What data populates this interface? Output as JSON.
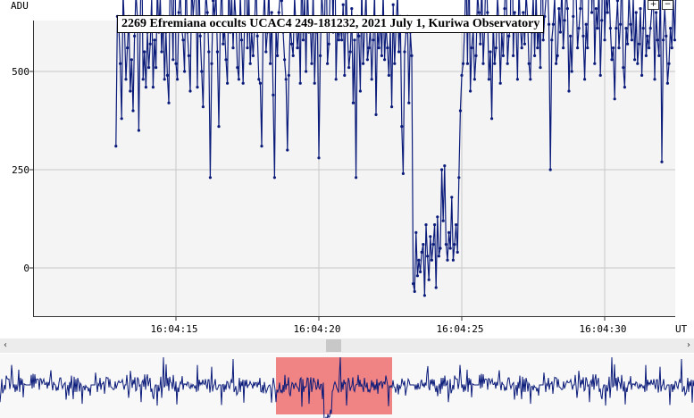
{
  "chart_title": "2269 Efremiana occults UCAC4 249-181232, 2021 July 1, Kuriwa Observatory",
  "colors": {
    "series": "#0b1b7a",
    "grid": "#c8c8c8",
    "selection": "#ee6e6e",
    "plot_background": "#f4f4f4"
  },
  "controls": {
    "zoom_in_label": "+",
    "zoom_out_label": "−",
    "scroll_left_label": "‹",
    "scroll_right_label": "›"
  },
  "chart_data": {
    "type": "line",
    "title": "2269 Efremiana occults UCAC4 249-181232, 2021 July 1, Kuriwa Observatory",
    "ylabel": "ADU",
    "xlabel": "UT",
    "ylim": [
      -250,
      1150
    ],
    "xlim_seconds": [
      12.9,
      35.4
    ],
    "yticks": [
      -250,
      0,
      250,
      500,
      750,
      1000
    ],
    "xticks": [
      {
        "t": 15,
        "label": "16:04:15"
      },
      {
        "t": 20,
        "label": "16:04:20"
      },
      {
        "t": 25,
        "label": "16:04:25"
      },
      {
        "t": 30,
        "label": "16:04:30"
      }
    ],
    "grid": true,
    "markers": true,
    "series": [
      {
        "x_start_seconds": 12.9,
        "x_step_seconds": 0.05,
        "values": [
          310,
          640,
          620,
          520,
          380,
          700,
          610,
          480,
          560,
          640,
          450,
          530,
          400,
          590,
          700,
          640,
          350,
          620,
          840,
          480,
          550,
          460,
          600,
          510,
          570,
          690,
          460,
          580,
          510,
          720,
          600,
          690,
          550,
          640,
          480,
          600,
          490,
          420,
          770,
          690,
          530,
          940,
          520,
          480,
          650,
          700,
          610,
          580,
          500,
          760,
          600,
          540,
          450,
          730,
          640,
          690,
          710,
          460,
          760,
          590,
          500,
          410,
          600,
          700,
          650,
          550,
          230,
          520,
          680,
          640,
          700,
          550,
          360,
          620,
          730,
          570,
          610,
          530,
          470,
          740,
          600,
          690,
          560,
          690,
          630,
          510,
          480,
          700,
          580,
          470,
          620,
          940,
          560,
          700,
          520,
          600,
          540,
          610,
          740,
          590,
          480,
          470,
          310,
          620,
          700,
          550,
          600,
          720,
          520,
          650,
          440,
          230,
          610,
          540,
          650,
          700,
          680,
          600,
          530,
          480,
          300,
          490,
          620,
          570,
          540,
          690,
          610,
          560,
          630,
          470,
          780,
          580,
          690,
          500,
          720,
          600,
          620,
          520,
          710,
          470,
          600,
          620,
          280,
          540,
          700,
          640,
          610,
          860,
          520,
          570,
          730,
          780,
          600,
          910,
          480,
          620,
          580,
          620,
          580,
          670,
          490,
          720,
          600,
          510,
          550,
          660,
          420,
          580,
          230,
          640,
          590,
          450,
          720,
          520,
          610,
          700,
          530,
          560,
          610,
          480,
          580,
          700,
          390,
          610,
          560,
          640,
          540,
          700,
          530,
          620,
          560,
          490,
          610,
          410,
          670,
          520,
          610,
          700,
          550,
          640,
          360,
          240,
          550,
          600,
          640,
          420,
          600,
          540,
          -40,
          -60,
          90,
          -20,
          20,
          -10,
          40,
          60,
          -70,
          110,
          30,
          -30,
          80,
          20,
          60,
          110,
          -50,
          130,
          30,
          50,
          250,
          120,
          260,
          60,
          20,
          90,
          50,
          180,
          20,
          60,
          110,
          40,
          230,
          400,
          490,
          520,
          610,
          770,
          520,
          810,
          450,
          560,
          610,
          480,
          540,
          700,
          650,
          570,
          740,
          520,
          610,
          790,
          650,
          480,
          550,
          380,
          630,
          520,
          560,
          690,
          620,
          470,
          600,
          540,
          660,
          780,
          520,
          590,
          610,
          1070,
          540,
          650,
          620,
          480,
          720,
          610,
          560,
          650,
          570,
          700,
          640,
          520,
          480,
          600,
          690,
          540,
          700,
          560,
          620,
          510,
          950,
          580,
          640,
          690,
          720,
          620,
          250,
          580,
          620,
          690,
          520,
          540,
          660,
          600,
          720,
          560,
          630,
          710,
          660,
          450,
          590,
          500,
          640,
          1040,
          700,
          560,
          610,
          660,
          740,
          590,
          480,
          620,
          560,
          730,
          970,
          650,
          800,
          520,
          660,
          610,
          720,
          490,
          630,
          920,
          580,
          700,
          650,
          720,
          610,
          530,
          560,
          430,
          610,
          680,
          560,
          620,
          770,
          510,
          460,
          610,
          570,
          700,
          620,
          580,
          690,
          530,
          650,
          520,
          570,
          660,
          490,
          610,
          720,
          540,
          590,
          560,
          610,
          660,
          700,
          480,
          650,
          580,
          540,
          720,
          270,
          580,
          660,
          590,
          470,
          520,
          610,
          560,
          690,
          580,
          720,
          640,
          530,
          610,
          480,
          560,
          690,
          850,
          520,
          660,
          610,
          590,
          480,
          300,
          620,
          700,
          540,
          560,
          650,
          590,
          680,
          510,
          620,
          590,
          560,
          620,
          410,
          580,
          650,
          590,
          640,
          510,
          750,
          560,
          690,
          610,
          590,
          670,
          630,
          520,
          620,
          550,
          200,
          700,
          640,
          580,
          620,
          450,
          600,
          500,
          690,
          640,
          380,
          610,
          720,
          600,
          560,
          590,
          650,
          480,
          620,
          530,
          660,
          510,
          600,
          690,
          540,
          590,
          720,
          620,
          640,
          460,
          600,
          710,
          650,
          580,
          600,
          720,
          610,
          520,
          560,
          640,
          760,
          540,
          720,
          680,
          600,
          690,
          560,
          590,
          650,
          600,
          420,
          240,
          450,
          540,
          610,
          580,
          540,
          490,
          770,
          560,
          610,
          680,
          640,
          590,
          720,
          580,
          660,
          560
        ]
      }
    ],
    "overview_selection_range_seconds": [
      12.9,
      35.4
    ]
  }
}
